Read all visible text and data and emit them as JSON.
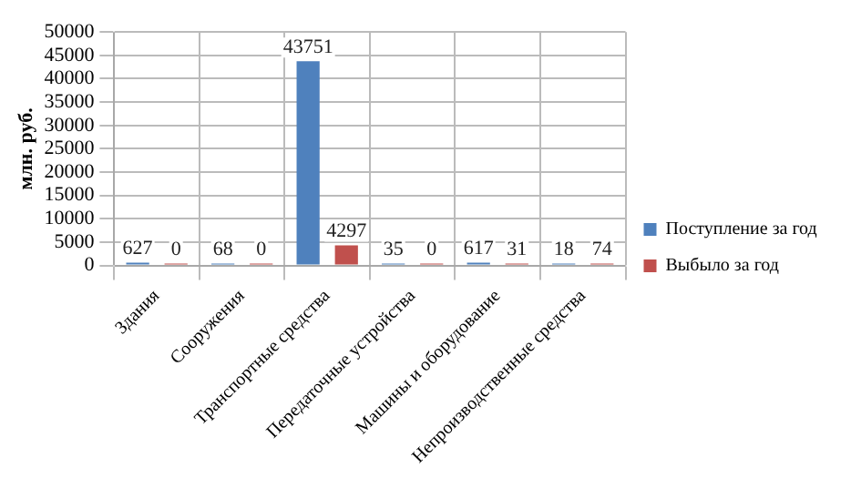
{
  "chart_data": {
    "type": "bar",
    "ylabel": "млн. руб.",
    "categories": [
      "Здания",
      "Сооружения",
      "Транспортные средства",
      "Передаточные устройства",
      "Машины и оборудование",
      "Непроизводственные средства"
    ],
    "series": [
      {
        "name": "Поступление за год",
        "color": "#4f81bd",
        "values": [
          627,
          68,
          43751,
          35,
          617,
          18
        ]
      },
      {
        "name": "Выбыло за год",
        "color": "#c0504d",
        "values": [
          0,
          0,
          4297,
          0,
          31,
          74
        ]
      }
    ],
    "ylim": [
      0,
      50000
    ],
    "yticks": [
      0,
      5000,
      10000,
      15000,
      20000,
      25000,
      30000,
      35000,
      40000,
      45000,
      50000
    ],
    "grid": true,
    "legend": "right",
    "data_labels": true
  }
}
